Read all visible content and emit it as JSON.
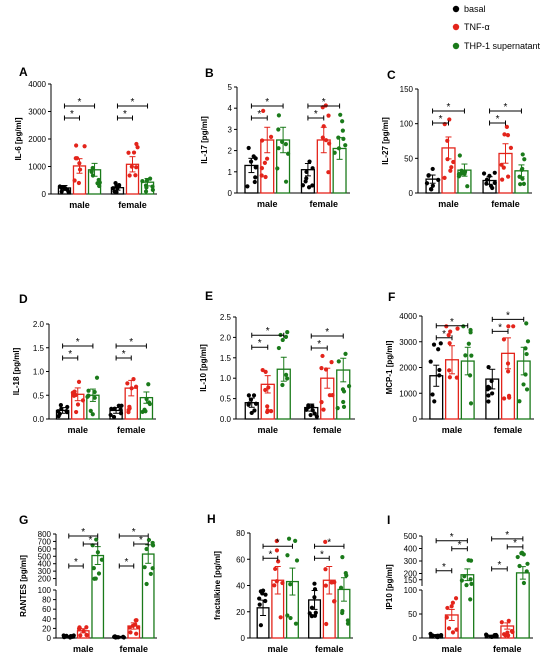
{
  "legend": [
    {
      "label": "basal",
      "color": "#000000"
    },
    {
      "label": "TNF-α",
      "color": "#e3241b"
    },
    {
      "label": "THP-1 supernatant",
      "color": "#1a7a1a"
    }
  ],
  "chart_data": [
    {
      "type": "bar",
      "panel": "A",
      "ylabel": "IL-6 [pg/ml]",
      "ylim": [
        0,
        4000
      ],
      "yticks": [
        "0",
        "1000",
        "2000",
        "3000",
        "4000"
      ],
      "categories": [
        "male",
        "female"
      ],
      "series": [
        {
          "name": "basal",
          "values": [
            220,
            230
          ]
        },
        {
          "name": "TNF-α",
          "values": [
            1020,
            1080
          ]
        },
        {
          "name": "THP-1 supernatant",
          "values": [
            880,
            430
          ]
        }
      ],
      "significance": [
        "*",
        "*",
        "*",
        "*"
      ]
    },
    {
      "type": "bar",
      "panel": "B",
      "ylabel": "IL-17 [pg/ml]",
      "ylim": [
        0,
        5
      ],
      "yticks": [
        "0",
        "1",
        "2",
        "3",
        "4",
        "5"
      ],
      "categories": [
        "male",
        "female"
      ],
      "series": [
        {
          "name": "basal",
          "values": [
            1.3,
            1.1
          ]
        },
        {
          "name": "TNF-α",
          "values": [
            2.5,
            2.5
          ]
        },
        {
          "name": "THP-1 supernatant",
          "values": [
            2.5,
            2.1
          ]
        }
      ],
      "significance": [
        "*",
        "*",
        "*",
        "*"
      ]
    },
    {
      "type": "bar",
      "panel": "C",
      "ylabel": "IL-27 [pg/ml]",
      "ylim": [
        0,
        150
      ],
      "yticks": [
        "0",
        "50",
        "100",
        "150"
      ],
      "categories": [
        "male",
        "female"
      ],
      "series": [
        {
          "name": "basal",
          "values": [
            20,
            18
          ]
        },
        {
          "name": "TNF-α",
          "values": [
            65,
            57
          ]
        },
        {
          "name": "THP-1 supernatant",
          "values": [
            33,
            32
          ]
        }
      ],
      "significance": [
        "*",
        "*",
        "*",
        "*"
      ]
    },
    {
      "type": "bar",
      "panel": "D",
      "ylabel": "IL-18 [pg/ml]",
      "ylim": [
        0,
        2.0
      ],
      "yticks": [
        "0.0",
        "0.5",
        "1.0",
        "1.5",
        "2.0"
      ],
      "categories": [
        "male",
        "female"
      ],
      "series": [
        {
          "name": "basal",
          "values": [
            0.18,
            0.18
          ]
        },
        {
          "name": "TNF-α",
          "values": [
            0.52,
            0.65
          ]
        },
        {
          "name": "THP-1 supernatant",
          "values": [
            0.5,
            0.45
          ]
        }
      ],
      "significance": [
        "*",
        "*",
        "*",
        "*"
      ]
    },
    {
      "type": "bar",
      "panel": "E",
      "ylabel": "IL-10 [pg/ml]",
      "ylim": [
        0,
        2.5
      ],
      "yticks": [
        "0.0",
        "0.5",
        "1.0",
        "1.5",
        "2.0",
        "2.5"
      ],
      "categories": [
        "male",
        "female"
      ],
      "series": [
        {
          "name": "basal",
          "values": [
            0.4,
            0.28
          ]
        },
        {
          "name": "TNF-α",
          "values": [
            0.85,
            1.0
          ]
        },
        {
          "name": "THP-1 supernatant",
          "values": [
            1.22,
            1.2
          ]
        }
      ],
      "significance": [
        "*",
        "*",
        "*",
        "*"
      ]
    },
    {
      "type": "bar",
      "panel": "F",
      "ylabel": "MCP-1 [pg/ml]",
      "ylim": [
        0,
        4000
      ],
      "yticks": [
        "0",
        "1000",
        "2000",
        "3000",
        "4000"
      ],
      "categories": [
        "male",
        "female"
      ],
      "series": [
        {
          "name": "basal",
          "values": [
            1680,
            1550
          ]
        },
        {
          "name": "TNF-α",
          "values": [
            2300,
            2550
          ]
        },
        {
          "name": "THP-1 supernatant",
          "values": [
            2250,
            2250
          ]
        }
      ],
      "significance": [
        "*",
        "*",
        "*",
        "*"
      ]
    },
    {
      "type": "bar",
      "panel": "G",
      "ylabel": "RANTES [pg/ml]",
      "ylim": [
        0,
        800
      ],
      "yticks": [
        "0",
        "20",
        "40",
        "60",
        "80",
        "100",
        "200",
        "300",
        "400",
        "500",
        "600",
        "700",
        "800"
      ],
      "broken_axis": {
        "lower": [
          0,
          100
        ],
        "upper": [
          100,
          800
        ]
      },
      "categories": [
        "male",
        "female"
      ],
      "series": [
        {
          "name": "basal",
          "values": [
            3,
            2
          ]
        },
        {
          "name": "TNF-α",
          "values": [
            15,
            25
          ]
        },
        {
          "name": "THP-1 supernatant",
          "values": [
            510,
            530
          ]
        }
      ],
      "significance": [
        "*",
        "*",
        "*",
        "*",
        "*",
        "*"
      ]
    },
    {
      "type": "bar",
      "panel": "H",
      "ylabel": "fractalkine [pg/ml]",
      "ylim": [
        0,
        80
      ],
      "yticks": [
        "0",
        "20",
        "40",
        "60",
        "80"
      ],
      "categories": [
        "male",
        "female"
      ],
      "series": [
        {
          "name": "basal",
          "values": [
            23,
            29
          ]
        },
        {
          "name": "TNF-α",
          "values": [
            44,
            44
          ]
        },
        {
          "name": "THP-1 supernatant",
          "values": [
            43,
            37
          ]
        }
      ],
      "significance": [
        "*",
        "*",
        "*",
        "*"
      ]
    },
    {
      "type": "bar",
      "panel": "I",
      "ylabel": "IP10 [pg/ml]",
      "ylim": [
        0,
        500
      ],
      "yticks": [
        "0",
        "50",
        "100",
        "150",
        "200",
        "300",
        "400",
        "500"
      ],
      "broken_axis": {
        "lower": [
          0,
          100
        ],
        "upper": [
          100,
          500
        ]
      },
      "categories": [
        "male",
        "female"
      ],
      "series": [
        {
          "name": "basal",
          "values": [
            5,
            4
          ]
        },
        {
          "name": "TNF-α",
          "values": [
            48,
            25
          ]
        },
        {
          "name": "THP-1 supernatant",
          "values": [
            190,
            205
          ]
        }
      ],
      "significance": [
        "*",
        "*",
        "*",
        "*",
        "*",
        "*"
      ]
    }
  ]
}
